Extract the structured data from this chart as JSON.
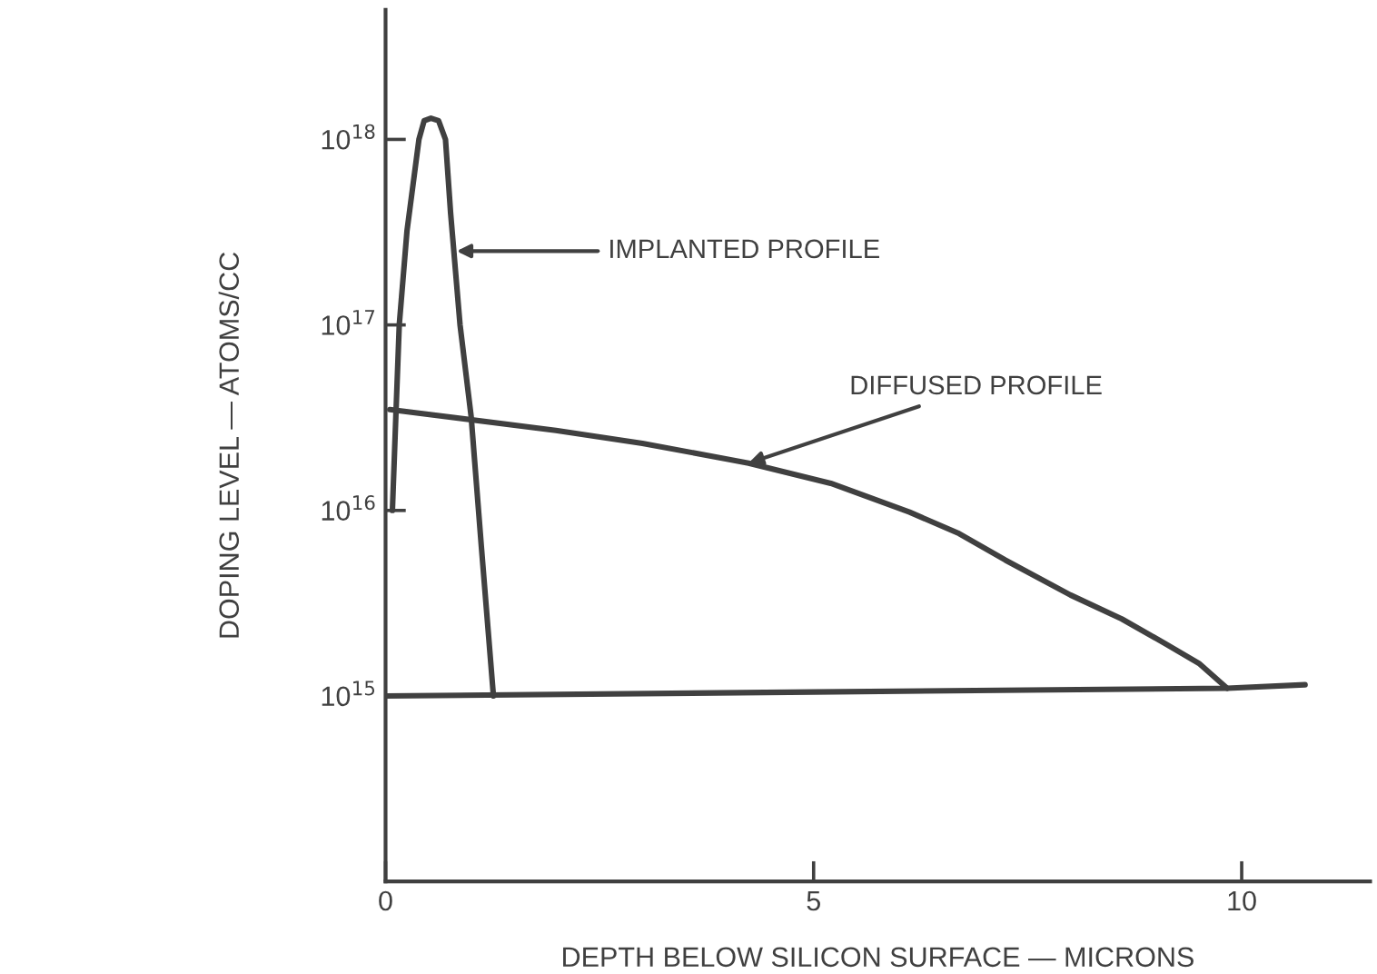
{
  "chart_data": {
    "type": "line",
    "xlabel": "DEPTH BELOW SILICON SURFACE — MICRONS",
    "ylabel": "DOPING LEVEL — ATOMS/CC",
    "log": "y",
    "grid": false,
    "marker": "none",
    "line_style": "solid",
    "xlim": [
      0,
      11.5
    ],
    "xticks": [
      0,
      5,
      10
    ],
    "ylim": [
      100000000000000.0,
      5e+18
    ],
    "yticks": [
      {
        "value": 1000000000000000.0,
        "label": "10$^{15}$"
      },
      {
        "value": 1e+16,
        "label": "10$^{16}$"
      },
      {
        "value": 1e+17,
        "label": "10$^{17}$"
      },
      {
        "value": 1e+18,
        "label": "10$^{18}$"
      }
    ],
    "series": [
      {
        "color": "#404040",
        "x": [
          0.08,
          0.12,
          0.16,
          0.25,
          0.39,
          0.45,
          0.53,
          0.62,
          0.7,
          0.76,
          0.87,
          1.0,
          1.12,
          1.26
        ],
        "values": [
          1e+16,
          3.2e+16,
          1e+17,
          3.2e+17,
          1e+18,
          1.26e+18,
          1.3e+18,
          1.26e+18,
          1e+18,
          4e+17,
          1e+17,
          3.2e+16,
          6300000000000000.0,
          1000000000000000.0
        ]
      },
      {
        "color": "#404040",
        "x": [
          0.05,
          1.99,
          3.0,
          4.24,
          5.2,
          6.12,
          6.7,
          7.24,
          8.0,
          8.6,
          9.12,
          9.5,
          9.83
        ],
        "values": [
          3.5e+16,
          2.7e+16,
          2.3e+16,
          1.8e+16,
          1.4e+16,
          9800000000000000.0,
          7500000000000000.0,
          5400000000000000.0,
          3500000000000000.0,
          2600000000000000.0,
          1900000000000000.0,
          1500000000000000.0,
          1100000000000000.0
        ]
      },
      {
        "color": "#404040",
        "x": [
          0,
          5,
          9.83,
          10.74
        ],
        "values": [
          1000000000000000.0,
          1050000000000000.0,
          1100000000000000.0,
          1150000000000000.0
        ]
      }
    ],
    "annotations": [
      {
        "text": "IMPLANTED PROFILE",
        "x": 0.83,
        "y": 2.5e+17
      },
      {
        "text": "DIFFUSED PROFILE",
        "x": 4.24,
        "y": 1.8e+16
      }
    ]
  }
}
